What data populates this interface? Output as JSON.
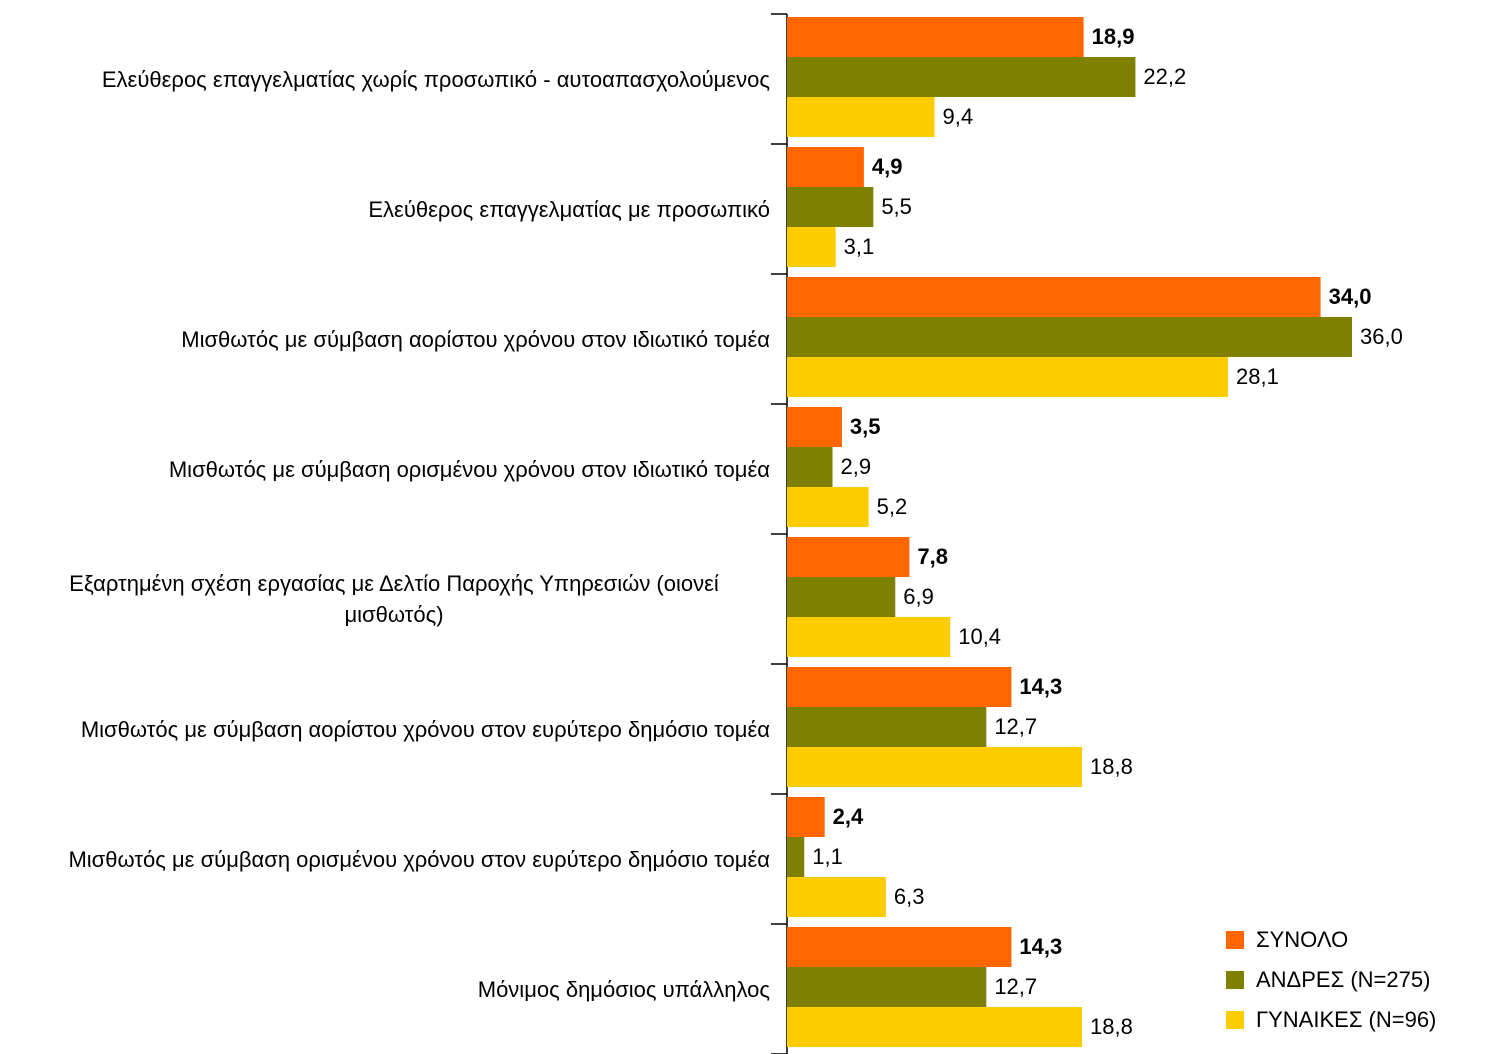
{
  "chart_data": {
    "type": "bar",
    "orientation": "horizontal",
    "categories": [
      "Ελεύθερος επαγγελματίας χωρίς προσωπικό - αυτοαπασχολούμενος",
      "Ελεύθερος επαγγελματίας με προσωπικό",
      "Μισθωτός με σύμβαση αορίστου χρόνου στον ιδιωτικό τομέα",
      "Μισθωτός με σύμβαση ορισμένου χρόνου στον ιδιωτικό τομέα",
      "Εξαρτημένη σχέση εργασίας με Δελτίο Παροχής Υπηρεσιών (οιονεί μισθωτός)",
      "Μισθωτός με σύμβαση αορίστου χρόνου στον ευρύτερο δημόσιο τομέα",
      "Μισθωτός με σύμβαση ορισμένου χρόνου στον ευρύτερο δημόσιο τομέα",
      "Μόνιμος δημόσιος υπάλληλος"
    ],
    "series": [
      {
        "name": "ΣΥΝΟΛΟ",
        "color": "#ff6600",
        "bold_labels": true,
        "values": [
          18.9,
          4.9,
          34.0,
          3.5,
          7.8,
          14.3,
          2.4,
          14.3
        ],
        "value_labels": [
          "18,9",
          "4,9",
          "34,0",
          "3,5",
          "7,8",
          "14,3",
          "2,4",
          "14,3"
        ]
      },
      {
        "name": "ΑΝΔΡΕΣ (N=275)",
        "color": "#808000",
        "bold_labels": false,
        "values": [
          22.2,
          5.5,
          36.0,
          2.9,
          6.9,
          12.7,
          1.1,
          12.7
        ],
        "value_labels": [
          "22,2",
          "5,5",
          "36,0",
          "2,9",
          "6,9",
          "12,7",
          "1,1",
          "12,7"
        ]
      },
      {
        "name": "ΓΥΝΑΙΚΕΣ (N=96)",
        "color": "#ffcc00",
        "bold_labels": false,
        "values": [
          9.4,
          3.1,
          28.1,
          5.2,
          10.4,
          18.8,
          6.3,
          18.8
        ],
        "value_labels": [
          "9,4",
          "3,1",
          "28,1",
          "5,2",
          "10,4",
          "18,8",
          "6,3",
          "18,8"
        ]
      }
    ],
    "legend": "bottom-right"
  }
}
